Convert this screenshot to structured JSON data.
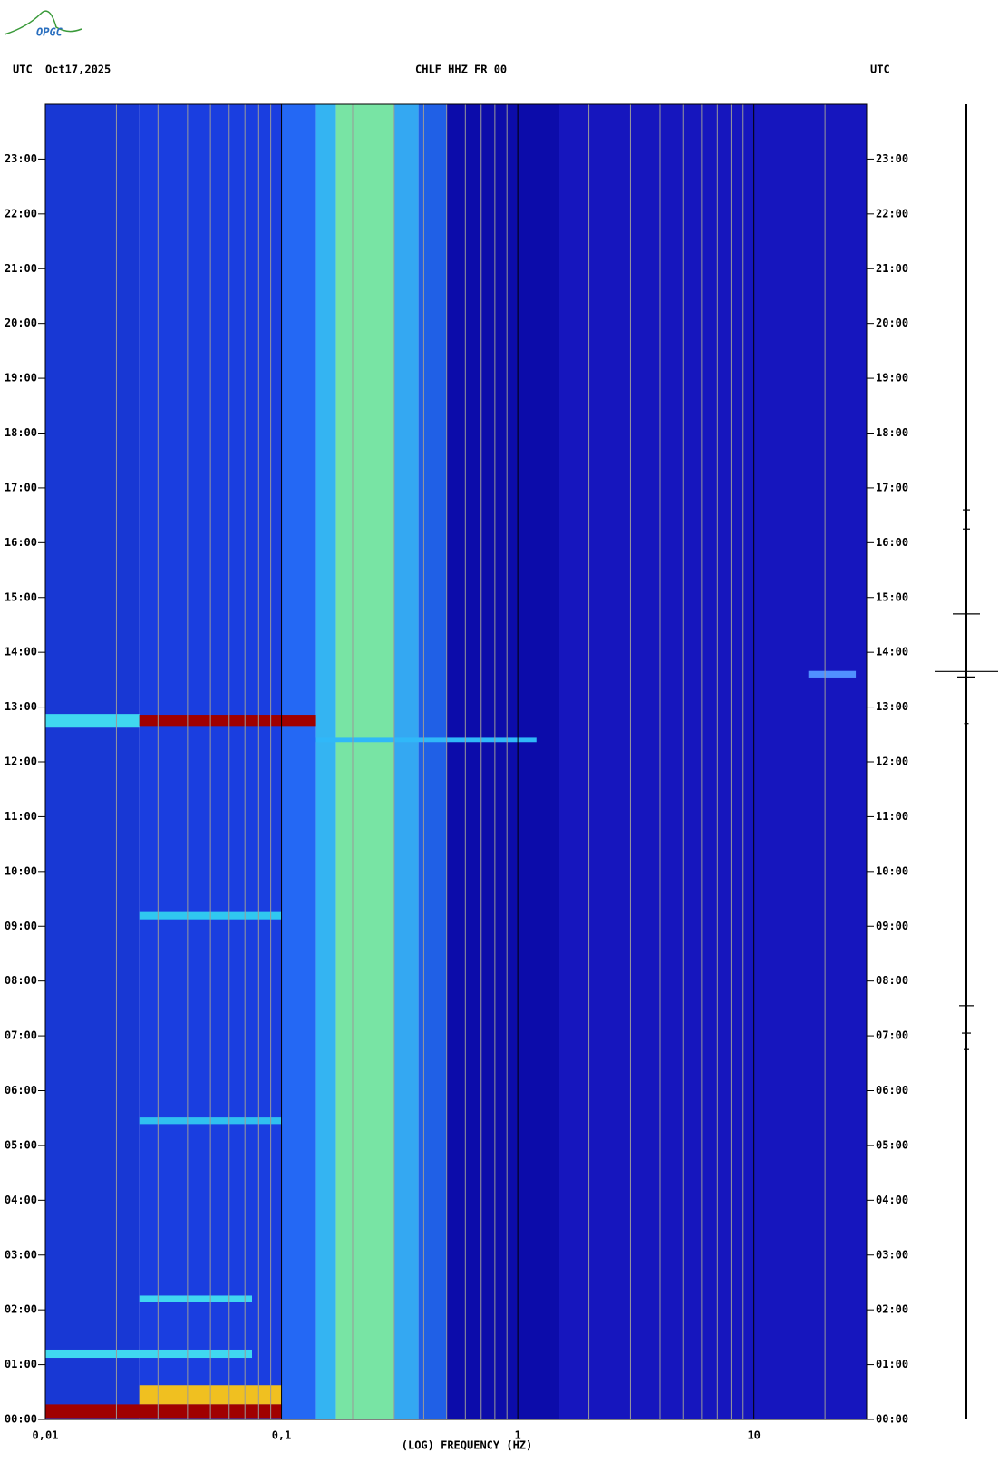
{
  "logo": "OPGC",
  "chart_data": {
    "type": "spectrogram",
    "header_left": "UTC",
    "date": "Oct17,2025",
    "title": "CHLF HHZ FR 00",
    "header_right": "UTC",
    "xlabel": "(LOG) FREQUENCY (HZ)",
    "xscale": "log",
    "xlim": [
      0.01,
      30
    ],
    "xticks": [
      {
        "value": 0.01,
        "label": "0,01"
      },
      {
        "value": 0.1,
        "label": "0,1"
      },
      1,
      10
    ],
    "xgrid": [
      0.02,
      0.03,
      0.04,
      0.05,
      0.06,
      0.07,
      0.08,
      0.09,
      0.2,
      0.3,
      0.4,
      0.5,
      0.6,
      0.7,
      0.8,
      0.9,
      2,
      3,
      4,
      5,
      6,
      7,
      8,
      9,
      20
    ],
    "ylim": [
      0,
      24
    ],
    "yticks": [
      {
        "value": 0,
        "label": "00:00"
      },
      {
        "value": 1,
        "label": "01:00"
      },
      {
        "value": 2,
        "label": "02:00"
      },
      {
        "value": 3,
        "label": "03:00"
      },
      {
        "value": 4,
        "label": "04:00"
      },
      {
        "value": 5,
        "label": "05:00"
      },
      {
        "value": 6,
        "label": "06:00"
      },
      {
        "value": 7,
        "label": "07:00"
      },
      {
        "value": 8,
        "label": "08:00"
      },
      {
        "value": 9,
        "label": "09:00"
      },
      {
        "value": 10,
        "label": "10:00"
      },
      {
        "value": 11,
        "label": "11:00"
      },
      {
        "value": 12,
        "label": "12:00"
      },
      {
        "value": 13,
        "label": "13:00"
      },
      {
        "value": 14,
        "label": "14:00"
      },
      {
        "value": 15,
        "label": "15:00"
      },
      {
        "value": 16,
        "label": "16:00"
      },
      {
        "value": 17,
        "label": "17:00"
      },
      {
        "value": 18,
        "label": "18:00"
      },
      {
        "value": 19,
        "label": "19:00"
      },
      {
        "value": 20,
        "label": "20:00"
      },
      {
        "value": 21,
        "label": "21:00"
      },
      {
        "value": 22,
        "label": "22:00"
      },
      {
        "value": 23,
        "label": "23:00"
      }
    ],
    "bands": [
      {
        "fmin": 0.01,
        "fmax": 0.025,
        "color": "#1838d4"
      },
      {
        "fmin": 0.025,
        "fmax": 0.1,
        "color": "#1a3ee0"
      },
      {
        "fmin": 0.1,
        "fmax": 0.14,
        "color": "#2468f4"
      },
      {
        "fmin": 0.14,
        "fmax": 0.17,
        "color": "#34b4f2"
      },
      {
        "fmin": 0.17,
        "fmax": 0.3,
        "color": "#78e4a4"
      },
      {
        "fmin": 0.3,
        "fmax": 0.38,
        "color": "#34a8f2"
      },
      {
        "fmin": 0.38,
        "fmax": 0.5,
        "color": "#2060e6"
      },
      {
        "fmin": 0.5,
        "fmax": 1.5,
        "color": "#0c0caa"
      },
      {
        "fmin": 1.5,
        "fmax": 30,
        "color": "#1616be"
      }
    ],
    "events": [
      {
        "time": 12.75,
        "fmin": 0.01,
        "fmax": 0.025,
        "height": 0.25,
        "color": "#40d8f0"
      },
      {
        "time": 12.75,
        "fmin": 0.025,
        "fmax": 0.14,
        "height": 0.22,
        "color": "#a00000"
      },
      {
        "time": 12.4,
        "fmin": 0.14,
        "fmax": 1.2,
        "height": 0.08,
        "color": "#30b8f8"
      },
      {
        "time": 9.2,
        "fmin": 0.025,
        "fmax": 0.1,
        "height": 0.15,
        "color": "#30c8f0"
      },
      {
        "time": 5.45,
        "fmin": 0.025,
        "fmax": 0.1,
        "height": 0.12,
        "color": "#30c0f0"
      },
      {
        "time": 2.2,
        "fmin": 0.025,
        "fmax": 0.075,
        "height": 0.12,
        "color": "#40d8f0"
      },
      {
        "time": 1.2,
        "fmin": 0.01,
        "fmax": 0.075,
        "height": 0.15,
        "color": "#40d8f0"
      },
      {
        "time": 0.45,
        "fmin": 0.025,
        "fmax": 0.1,
        "height": 0.35,
        "color": "#f0c020"
      },
      {
        "time": 0.15,
        "fmin": 0.01,
        "fmax": 0.1,
        "height": 0.25,
        "color": "#a00000"
      },
      {
        "time": 13.6,
        "fmin": 17,
        "fmax": 27,
        "height": 0.12,
        "color": "#5090ff"
      }
    ],
    "trace": [
      {
        "time": 16.6,
        "amp": 8
      },
      {
        "time": 16.25,
        "amp": 8
      },
      {
        "time": 14.7,
        "amp": 30
      },
      {
        "time": 13.65,
        "amp": 70
      },
      {
        "time": 13.55,
        "amp": 20
      },
      {
        "time": 12.7,
        "amp": 5
      },
      {
        "time": 7.55,
        "amp": 16
      },
      {
        "time": 7.05,
        "amp": 10
      },
      {
        "time": 6.75,
        "amp": 6
      }
    ]
  }
}
